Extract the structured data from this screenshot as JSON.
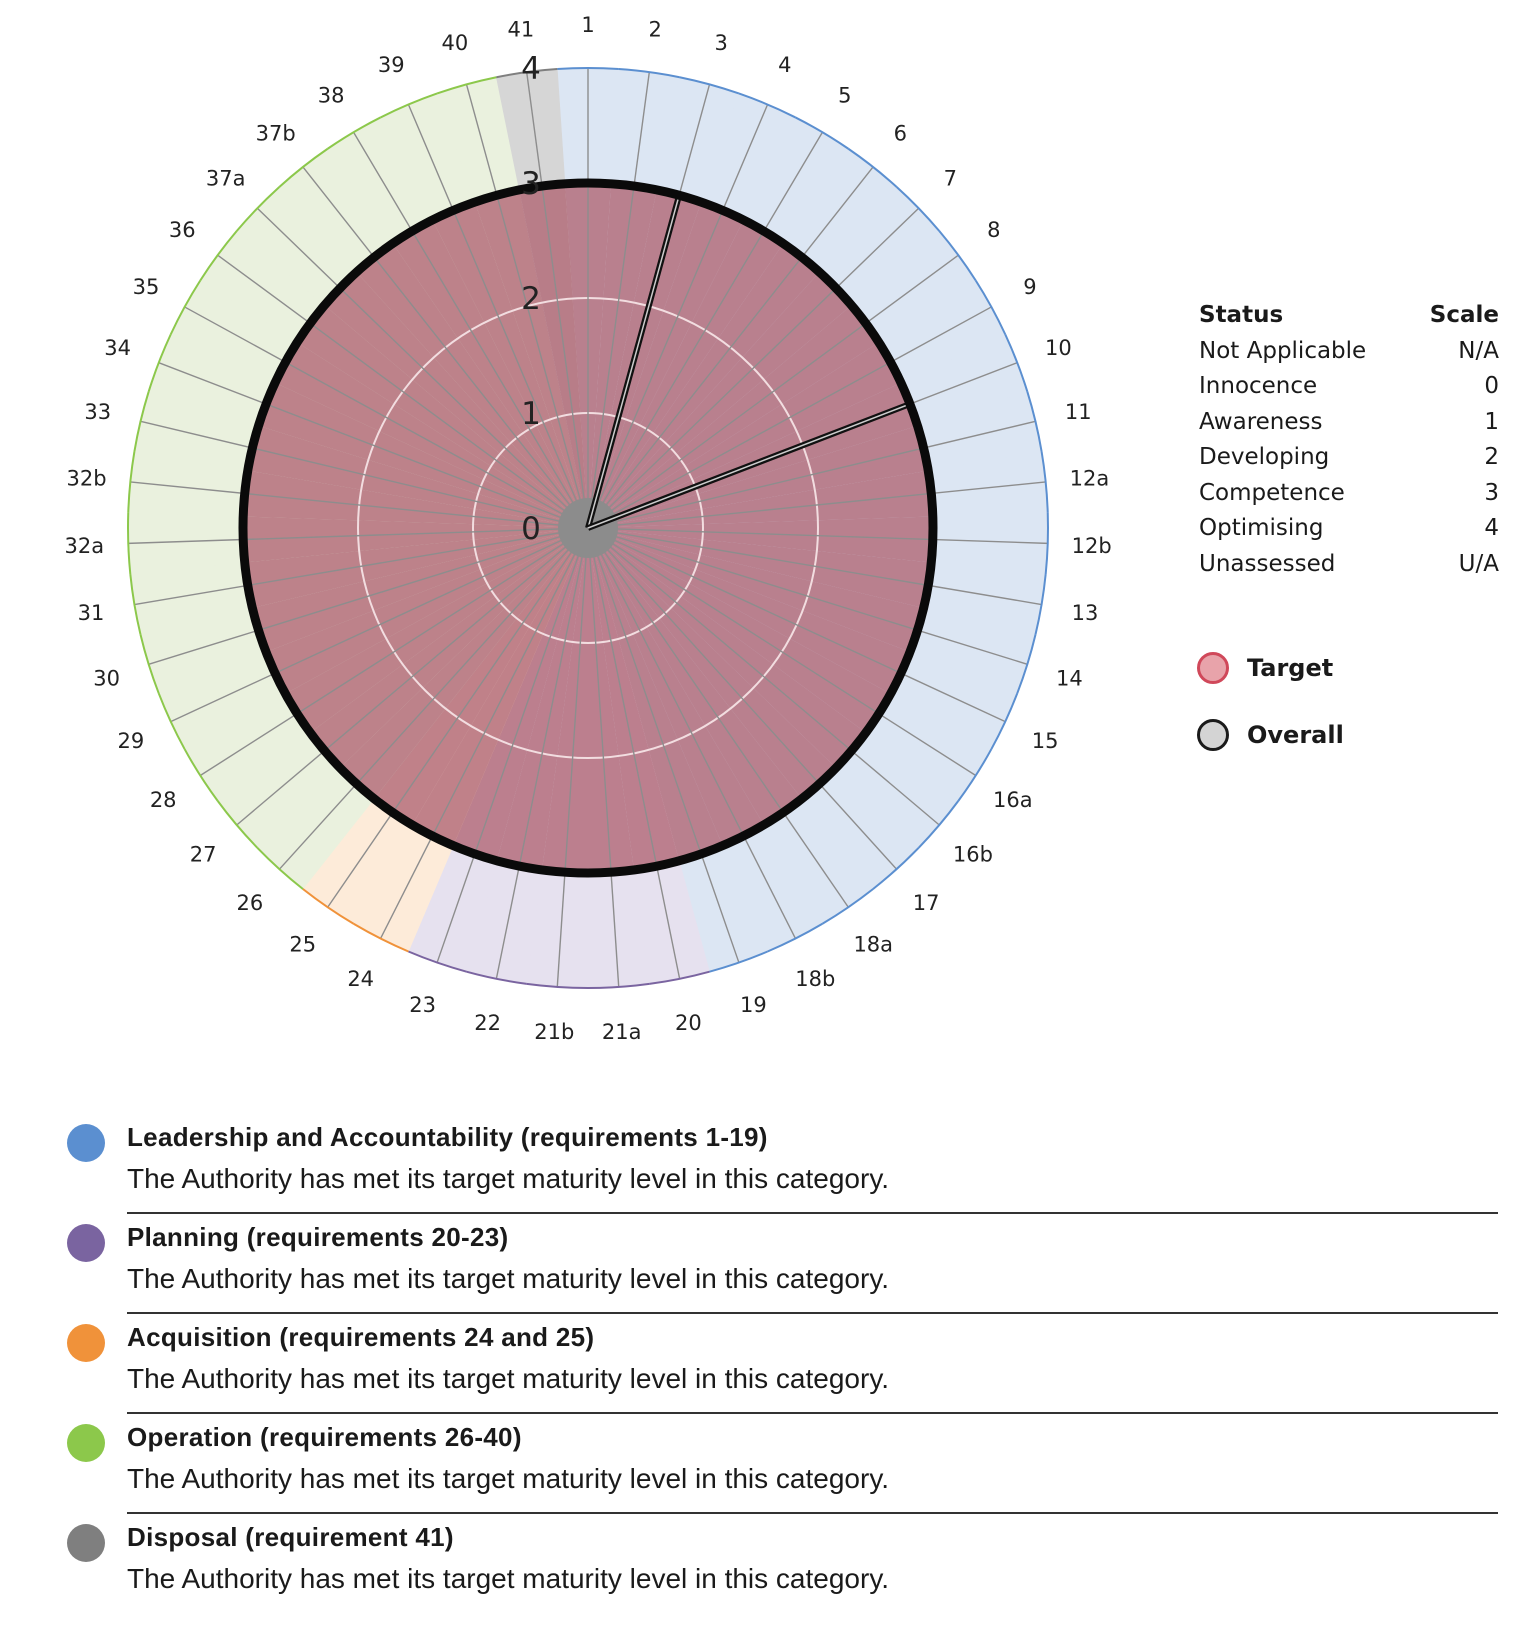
{
  "chart_data": {
    "type": "polar-area",
    "categories": [
      "1",
      "2",
      "3",
      "4",
      "5",
      "6",
      "7",
      "8",
      "9",
      "10",
      "11",
      "12a",
      "12b",
      "13",
      "14",
      "15",
      "16a",
      "16b",
      "17",
      "18a",
      "18b",
      "19",
      "20",
      "21a",
      "21b",
      "22",
      "23",
      "24",
      "25",
      "26",
      "27",
      "28",
      "29",
      "30",
      "31",
      "32a",
      "32b",
      "33",
      "34",
      "35",
      "36",
      "37a",
      "37b",
      "38",
      "39",
      "40",
      "41"
    ],
    "category_groups": [
      "lead",
      "lead",
      "lead",
      "lead",
      "lead",
      "lead",
      "lead",
      "lead",
      "lead",
      "lead",
      "lead",
      "lead",
      "lead",
      "lead",
      "lead",
      "lead",
      "lead",
      "lead",
      "lead",
      "lead",
      "lead",
      "lead",
      "plan",
      "plan",
      "plan",
      "plan",
      "plan",
      "acq",
      "acq",
      "op",
      "op",
      "op",
      "op",
      "op",
      "op",
      "op",
      "op",
      "op",
      "op",
      "op",
      "op",
      "op",
      "op",
      "op",
      "op",
      "op",
      "disp"
    ],
    "series": [
      {
        "name": "Target",
        "values": [
          3,
          3,
          3,
          3,
          3,
          3,
          3,
          3,
          3,
          3,
          3,
          3,
          3,
          3,
          3,
          3,
          3,
          3,
          3,
          3,
          3,
          3,
          3,
          3,
          3,
          3,
          3,
          3,
          3,
          3,
          3,
          3,
          3,
          3,
          3,
          3,
          3,
          3,
          3,
          3,
          3,
          3,
          3,
          3,
          3,
          3,
          3
        ],
        "color": "#e07b86"
      },
      {
        "name": "Overall",
        "values": [
          3,
          3,
          3,
          3,
          3,
          3,
          3,
          3,
          3,
          3,
          3,
          3,
          3,
          3,
          3,
          3,
          3,
          3,
          3,
          3,
          3,
          3,
          3,
          3,
          3,
          3,
          3,
          3,
          3,
          3,
          3,
          3,
          3,
          3,
          3,
          3,
          3,
          3,
          3,
          3,
          3,
          3,
          3,
          3,
          3,
          3,
          3
        ],
        "color": "#c8c8c8"
      }
    ],
    "radial_ticks": [
      "0",
      "1",
      "2",
      "3",
      "4"
    ],
    "rlim": [
      0,
      4
    ],
    "grid": true,
    "legend": "right"
  },
  "groups": {
    "lead": {
      "color": "#5b8fd0",
      "tint": "#dce6f3"
    },
    "plan": {
      "color": "#7a64a0",
      "tint": "#e6e1ef"
    },
    "acq": {
      "color": "#f0923a",
      "tint": "#fdebd9"
    },
    "op": {
      "color": "#8cc84b",
      "tint": "#eaf1de"
    },
    "disp": {
      "color": "#7f7f7f",
      "tint": "#d6d6d6"
    }
  },
  "status_table": {
    "header": {
      "status": "Status",
      "scale": "Scale"
    },
    "rows": [
      {
        "status": "Not Applicable",
        "scale": "N/A"
      },
      {
        "status": "Innocence",
        "scale": "0"
      },
      {
        "status": "Awareness",
        "scale": "1"
      },
      {
        "status": "Developing",
        "scale": "2"
      },
      {
        "status": "Competence",
        "scale": "3"
      },
      {
        "status": "Optimising",
        "scale": "4"
      },
      {
        "status": "Unassessed",
        "scale": "U/A"
      }
    ]
  },
  "series_legend": {
    "target": {
      "label": "Target",
      "fill": "#e8a3aa",
      "stroke": "#d0485a"
    },
    "overall": {
      "label": "Overall",
      "fill": "#d4d4d4",
      "stroke": "#1a1a1a"
    }
  },
  "categories": [
    {
      "title": "Leadership and Accountability (requirements 1-19)",
      "description": "The Authority has met its target maturity level in this category.",
      "color": "#5b8fd0"
    },
    {
      "title": "Planning (requirements 20-23)",
      "description": "The Authority has met its target maturity level in this category.",
      "color": "#7a64a0"
    },
    {
      "title": "Acquisition (requirements 24 and 25)",
      "description": "The Authority has met its target maturity level in this category.",
      "color": "#f0923a"
    },
    {
      "title": "Operation (requirements 26-40)",
      "description": "The Authority has met its target maturity level in this category.",
      "color": "#8cc84b"
    },
    {
      "title": "Disposal (requirement 41)",
      "description": "The Authority has met its target maturity level in this category.",
      "color": "#7f7f7f"
    }
  ]
}
